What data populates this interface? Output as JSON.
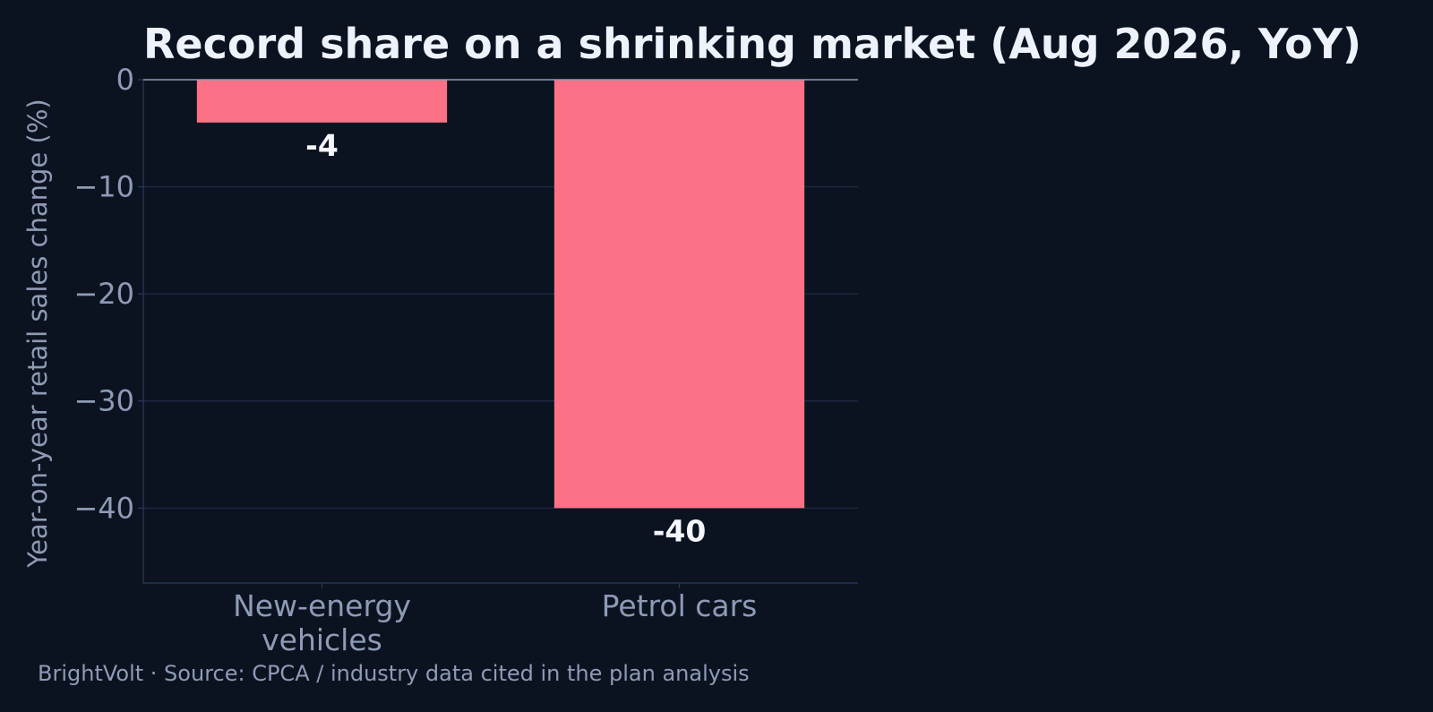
{
  "chart_data": {
    "type": "bar",
    "title": "Record share on a shrinking market (Aug 2026, YoY)",
    "ylabel": "Year-on-year retail sales change (%)",
    "xlabel": "",
    "categories": [
      "New-energy\nvehicles",
      "Petrol cars"
    ],
    "values": [
      -4,
      -40
    ],
    "value_labels": [
      "-4",
      "-40"
    ],
    "ylim": [
      -47,
      0
    ],
    "yticks": [
      0,
      -10,
      -20,
      -30,
      -40
    ],
    "ytick_labels": [
      "0",
      "−10",
      "−20",
      "−30",
      "−40"
    ],
    "grid": true,
    "legend": "none"
  },
  "colors": {
    "background": "#0c1320",
    "bar": "#fd7186",
    "grid": "#1e2c48",
    "axis": "#2a3a5a",
    "zero_line": "#8e9bb6",
    "tick_text": "#8e9bb6",
    "value_text": "#f4f6fb",
    "title_text": "#eef2fa"
  },
  "footer": "BrightVolt  ·  Source: CPCA / industry data cited in the plan analysis"
}
